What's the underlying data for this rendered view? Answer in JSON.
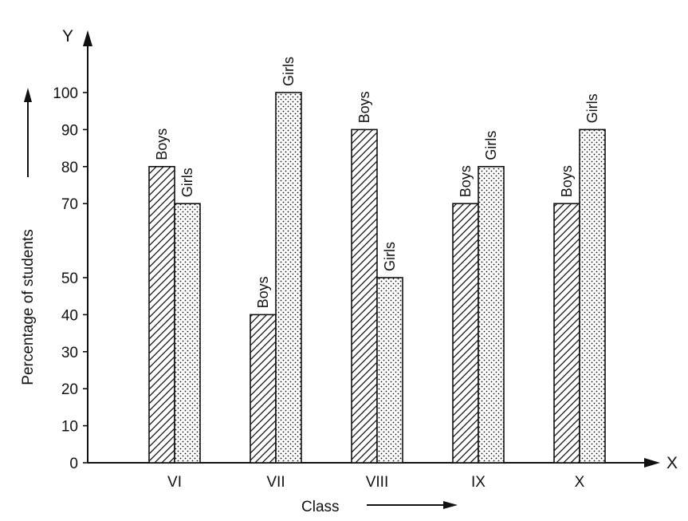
{
  "chart_data": {
    "type": "bar",
    "categories": [
      "VI",
      "VII",
      "VIII",
      "IX",
      "X"
    ],
    "series": [
      {
        "name": "Boys",
        "values": [
          80,
          40,
          90,
          70,
          70
        ],
        "pattern": "hatch"
      },
      {
        "name": "Girls",
        "values": [
          70,
          100,
          50,
          80,
          90
        ],
        "pattern": "dots"
      }
    ],
    "yticks": [
      0,
      10,
      20,
      30,
      40,
      50,
      70,
      80,
      90,
      100
    ],
    "ylim": [
      0,
      100
    ],
    "xlabel": "Class",
    "ylabel": "Percentage of students",
    "x_axis_letter": "X",
    "y_axis_letter": "Y",
    "grid": false,
    "legend": "none",
    "colors": {
      "ink": "#111111",
      "background": "#ffffff"
    }
  }
}
